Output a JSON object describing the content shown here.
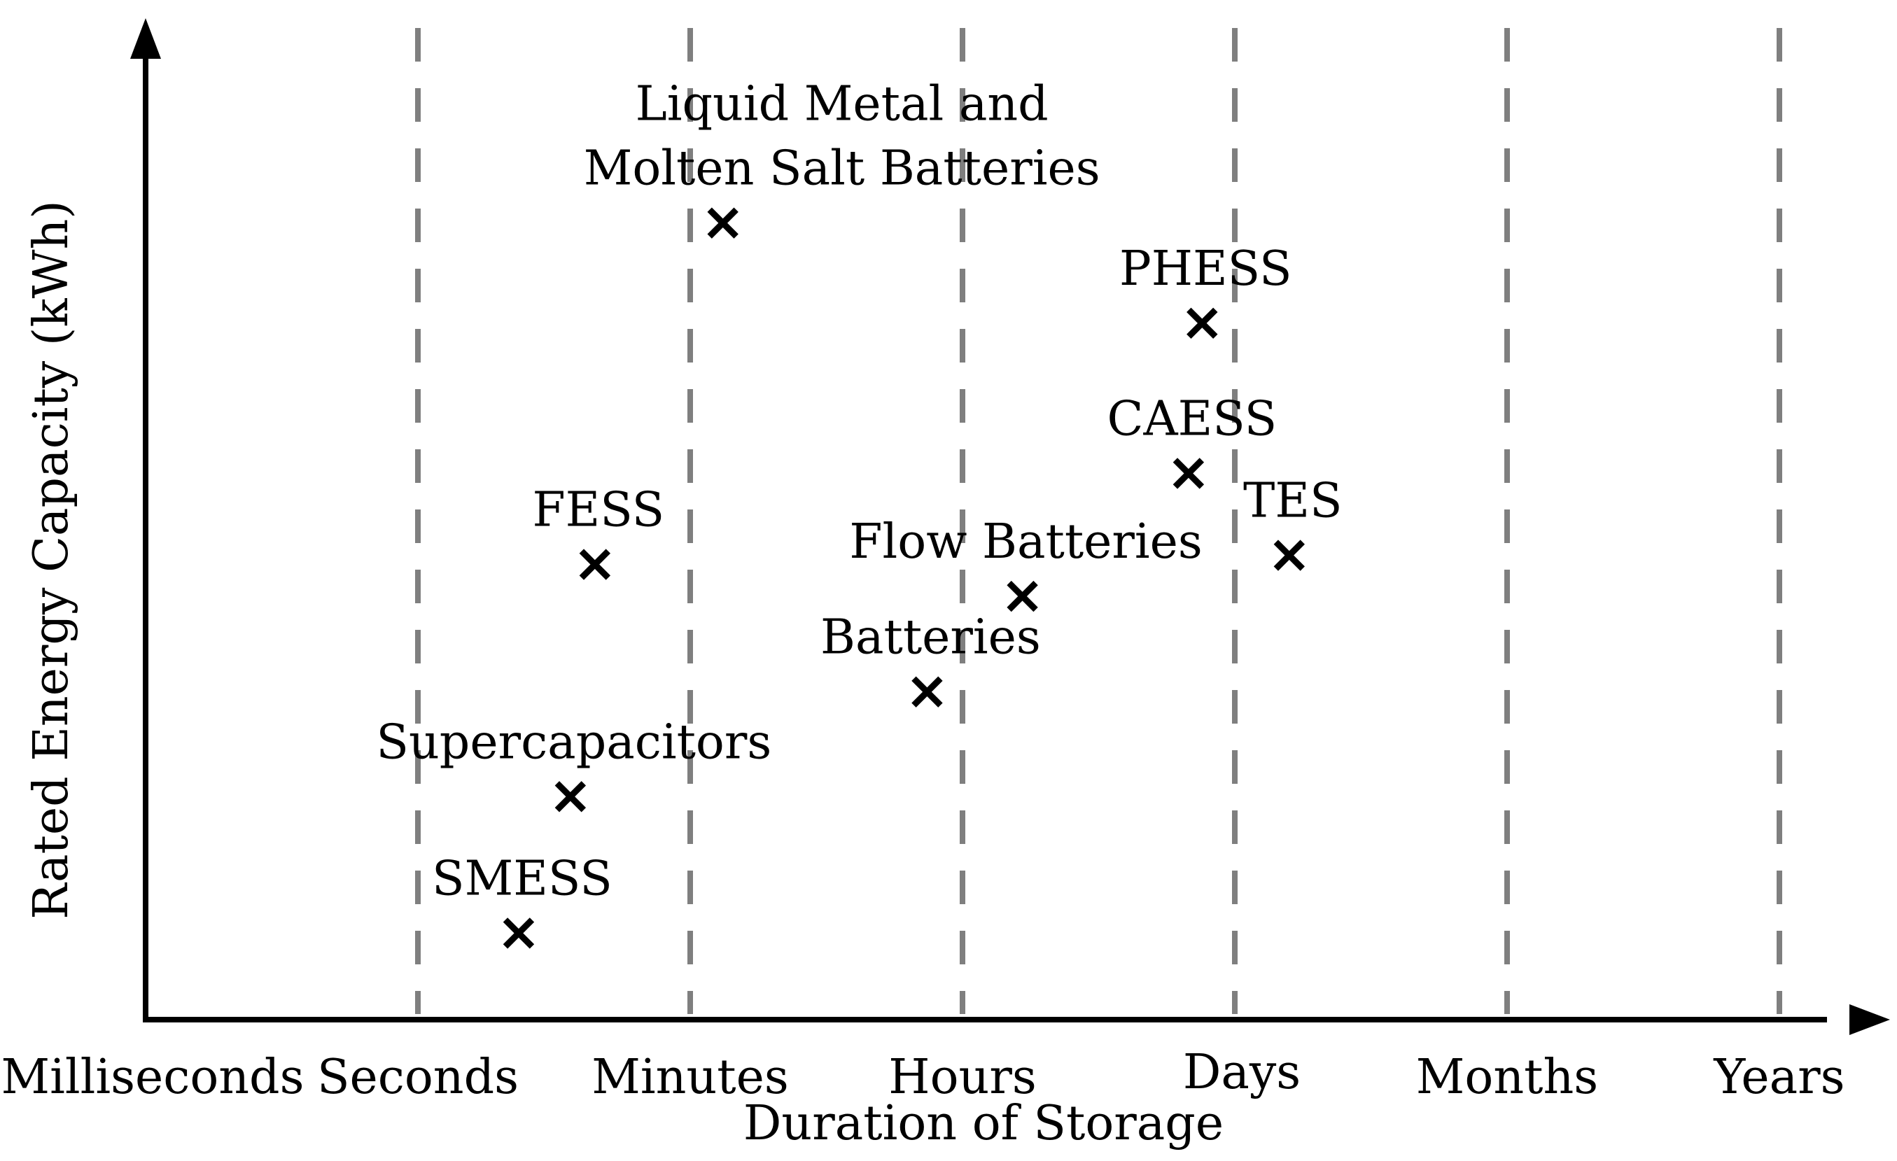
{
  "chart_data": {
    "type": "scatter",
    "title": "",
    "xlabel": "Duration of Storage",
    "ylabel": "Rated Energy Capacity (kWh)",
    "x_categories": [
      "Milliseconds",
      "Seconds",
      "Minutes",
      "Hours",
      "Days",
      "Months",
      "Years"
    ],
    "xlim": [
      0,
      6.2
    ],
    "ylim": [
      0,
      11
    ],
    "grid": "vertical dashed lines at category ticks",
    "marker": "cross",
    "colors": {
      "axis": "#000000",
      "grid": "#7f7f7f",
      "marker": "#000000"
    },
    "points": [
      {
        "label": "SMESS",
        "x": 1.37,
        "y": 0.95
      },
      {
        "label": "Supercapacitors",
        "x": 1.56,
        "y": 2.45
      },
      {
        "label": "FESS",
        "x": 1.65,
        "y": 5.0
      },
      {
        "label": "Liquid Metal and\nMolten Salt Batteries",
        "x": 2.12,
        "y": 8.75
      },
      {
        "label": "Batteries",
        "x": 2.87,
        "y": 3.6
      },
      {
        "label": "Flow Batteries",
        "x": 3.22,
        "y": 4.65
      },
      {
        "label": "CAESS",
        "x": 3.83,
        "y": 6.0
      },
      {
        "label": "PHESS",
        "x": 3.88,
        "y": 7.65
      },
      {
        "label": "TES",
        "x": 4.2,
        "y": 5.1
      }
    ]
  }
}
